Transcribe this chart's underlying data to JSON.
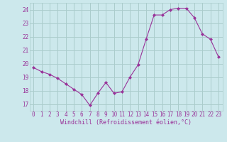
{
  "x": [
    0,
    1,
    2,
    3,
    4,
    5,
    6,
    7,
    8,
    9,
    10,
    11,
    12,
    13,
    14,
    15,
    16,
    17,
    18,
    19,
    20,
    21,
    22,
    23
  ],
  "y": [
    19.7,
    19.4,
    19.2,
    18.9,
    18.5,
    18.1,
    17.7,
    16.9,
    17.8,
    18.6,
    17.8,
    17.9,
    19.0,
    19.9,
    21.8,
    23.6,
    23.6,
    24.0,
    24.1,
    24.1,
    23.4,
    22.2,
    21.8,
    20.5
  ],
  "xlim": [
    -0.5,
    23.5
  ],
  "ylim": [
    16.5,
    24.5
  ],
  "yticks": [
    17,
    18,
    19,
    20,
    21,
    22,
    23,
    24
  ],
  "xticks": [
    0,
    1,
    2,
    3,
    4,
    5,
    6,
    7,
    8,
    9,
    10,
    11,
    12,
    13,
    14,
    15,
    16,
    17,
    18,
    19,
    20,
    21,
    22,
    23
  ],
  "xlabel": "Windchill (Refroidissement éolien,°C)",
  "line_color": "#993399",
  "marker": "D",
  "marker_size": 2.0,
  "bg_color": "#cce8ec",
  "grid_color": "#aacccc",
  "label_color": "#993399",
  "tick_color": "#993399",
  "tick_fontsize": 5.5,
  "xlabel_fontsize": 6.0
}
